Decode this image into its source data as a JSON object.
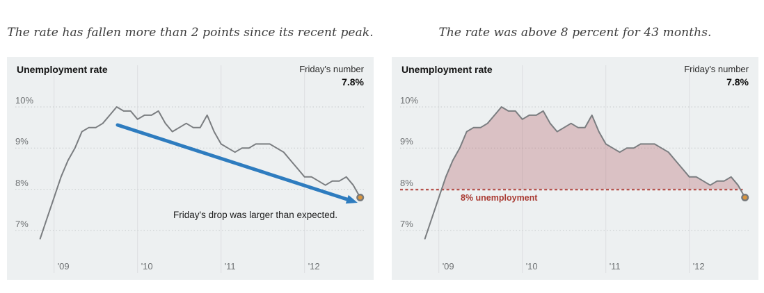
{
  "page": {
    "background": "#ffffff"
  },
  "chart_data": [
    {
      "type": "line",
      "title": "The rate has fallen more than 2 points since its recent peak.",
      "panel_label": "Unemployment rate",
      "kicker_label": "Friday's number",
      "kicker_value": "7.8%",
      "x": [
        "2008-11",
        "2008-12",
        "2009-01",
        "2009-02",
        "2009-03",
        "2009-04",
        "2009-05",
        "2009-06",
        "2009-07",
        "2009-08",
        "2009-09",
        "2009-10",
        "2009-11",
        "2009-12",
        "2010-01",
        "2010-02",
        "2010-03",
        "2010-04",
        "2010-05",
        "2010-06",
        "2010-07",
        "2010-08",
        "2010-09",
        "2010-10",
        "2010-11",
        "2010-12",
        "2011-01",
        "2011-02",
        "2011-03",
        "2011-04",
        "2011-05",
        "2011-06",
        "2011-07",
        "2011-08",
        "2011-09",
        "2011-10",
        "2011-11",
        "2011-12",
        "2012-01",
        "2012-02",
        "2012-03",
        "2012-04",
        "2012-05",
        "2012-06",
        "2012-07",
        "2012-08",
        "2012-09"
      ],
      "values": [
        6.8,
        7.3,
        7.8,
        8.3,
        8.7,
        9.0,
        9.4,
        9.5,
        9.5,
        9.6,
        9.8,
        10.0,
        9.9,
        9.9,
        9.7,
        9.8,
        9.8,
        9.9,
        9.6,
        9.4,
        9.5,
        9.6,
        9.5,
        9.5,
        9.8,
        9.4,
        9.1,
        9.0,
        8.9,
        9.0,
        9.0,
        9.1,
        9.1,
        9.1,
        9.0,
        8.9,
        8.7,
        8.5,
        8.3,
        8.3,
        8.2,
        8.1,
        8.2,
        8.2,
        8.3,
        8.1,
        7.8
      ],
      "ylim": [
        6.6,
        10.3
      ],
      "yticks": [
        {
          "value": 10,
          "label": "10%"
        },
        {
          "value": 9,
          "label": "9%"
        },
        {
          "value": 8,
          "label": "8%"
        },
        {
          "value": 7,
          "label": "7%"
        }
      ],
      "xticks": [
        {
          "month_index": 2,
          "label": "'09"
        },
        {
          "month_index": 14,
          "label": "'10"
        },
        {
          "month_index": 26,
          "label": "'11"
        },
        {
          "month_index": 38,
          "label": "'12"
        }
      ],
      "annotation": "Friday's drop was larger than expected.",
      "has_trend_arrow": true,
      "end_dot_value": 7.8,
      "colors": {
        "series_line": "#7a7d80",
        "arrow": "#2e7cbf",
        "dot_fill": "#d9953e",
        "dot_stroke": "#76797c"
      }
    },
    {
      "type": "line",
      "title": "The rate was above 8 percent for 43 months.",
      "panel_label": "Unemployment rate",
      "kicker_label": "Friday's number",
      "kicker_value": "7.8%",
      "x": [
        "2008-11",
        "2008-12",
        "2009-01",
        "2009-02",
        "2009-03",
        "2009-04",
        "2009-05",
        "2009-06",
        "2009-07",
        "2009-08",
        "2009-09",
        "2009-10",
        "2009-11",
        "2009-12",
        "2010-01",
        "2010-02",
        "2010-03",
        "2010-04",
        "2010-05",
        "2010-06",
        "2010-07",
        "2010-08",
        "2010-09",
        "2010-10",
        "2010-11",
        "2010-12",
        "2011-01",
        "2011-02",
        "2011-03",
        "2011-04",
        "2011-05",
        "2011-06",
        "2011-07",
        "2011-08",
        "2011-09",
        "2011-10",
        "2011-11",
        "2011-12",
        "2012-01",
        "2012-02",
        "2012-03",
        "2012-04",
        "2012-05",
        "2012-06",
        "2012-07",
        "2012-08",
        "2012-09"
      ],
      "values": [
        6.8,
        7.3,
        7.8,
        8.3,
        8.7,
        9.0,
        9.4,
        9.5,
        9.5,
        9.6,
        9.8,
        10.0,
        9.9,
        9.9,
        9.7,
        9.8,
        9.8,
        9.9,
        9.6,
        9.4,
        9.5,
        9.6,
        9.5,
        9.5,
        9.8,
        9.4,
        9.1,
        9.0,
        8.9,
        9.0,
        9.0,
        9.1,
        9.1,
        9.1,
        9.0,
        8.9,
        8.7,
        8.5,
        8.3,
        8.3,
        8.2,
        8.1,
        8.2,
        8.2,
        8.3,
        8.1,
        7.8
      ],
      "ylim": [
        6.6,
        10.3
      ],
      "yticks": [
        {
          "value": 10,
          "label": "10%"
        },
        {
          "value": 9,
          "label": "9%"
        },
        {
          "value": 8,
          "label": "8%"
        },
        {
          "value": 7,
          "label": "7%"
        }
      ],
      "xticks": [
        {
          "month_index": 2,
          "label": "'09"
        },
        {
          "month_index": 14,
          "label": "'10"
        },
        {
          "month_index": 26,
          "label": "'11"
        },
        {
          "month_index": 38,
          "label": "'12"
        }
      ],
      "threshold": {
        "value": 8,
        "label": "8% unemployment",
        "line_color": "#b5524c",
        "fill_color": "rgba(176,85,92,0.30)",
        "label_color": "#a93b33"
      },
      "end_dot_value": 7.8,
      "colors": {
        "series_line": "#7a7d80",
        "dot_fill": "#d9953e",
        "dot_stroke": "#76797c"
      }
    }
  ]
}
